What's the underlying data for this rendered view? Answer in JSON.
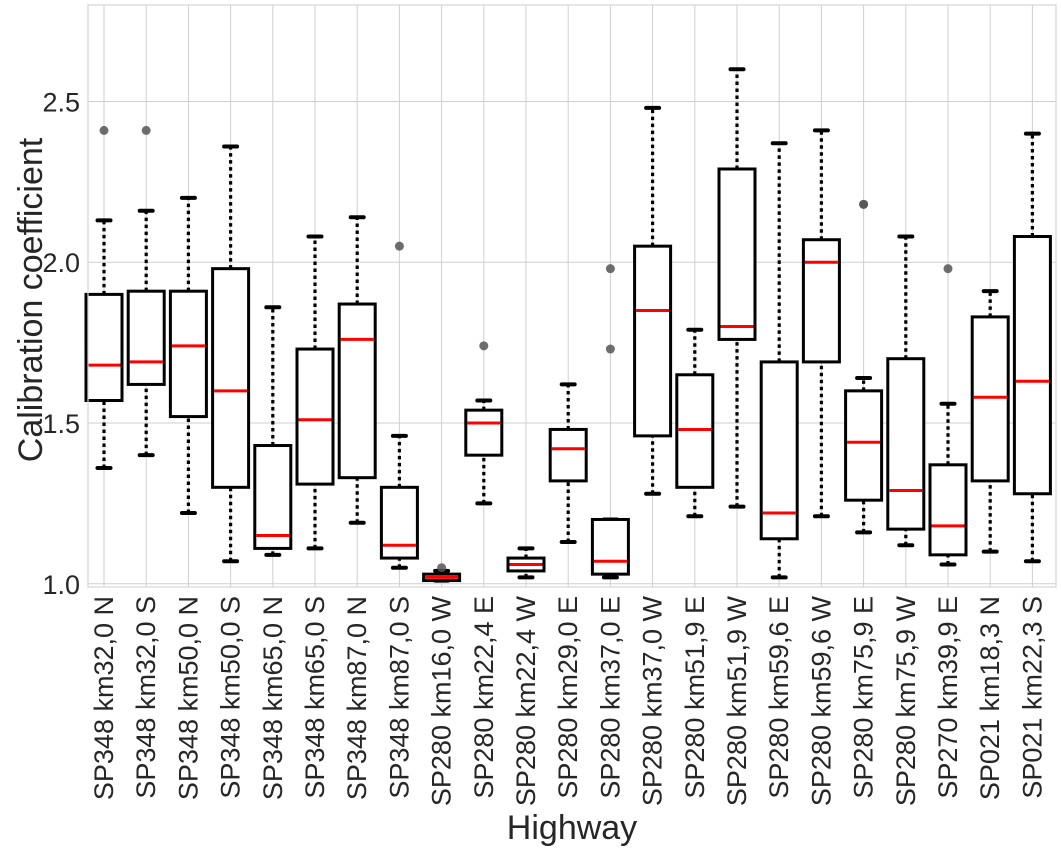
{
  "chart_data": {
    "type": "boxplot",
    "title": "",
    "xlabel": "Highway",
    "ylabel": "Calibration coefficient",
    "ylim": [
      0.99,
      2.8
    ],
    "yticks": [
      1.0,
      1.5,
      2.0,
      2.5
    ],
    "ytick_labels": [
      "1.0",
      "1.5",
      "2.0",
      "2.5"
    ],
    "grid": true,
    "colors": {
      "box": "#000000",
      "median": "#ff0000",
      "outlier": "#555555",
      "grid": "#cfcfcf",
      "frame": "#d6d6d6"
    },
    "categories": [
      "SP348 km32,0 N",
      "SP348 km32,0 S",
      "SP348 km50,0 N",
      "SP348 km50,0 S",
      "SP348 km65,0 N",
      "SP348 km65,0 S",
      "SP348 km87,0 N",
      "SP348 km87,0 S",
      "SP280 km16,0 W",
      "SP280 km22,4 E",
      "SP280 km22,4 W",
      "SP280 km29,0 E",
      "SP280 km37,0 E",
      "SP280 km37,0 W",
      "SP280 km51,9 E",
      "SP280 km51,9 W",
      "SP280 km59,6 E",
      "SP280 km59,6 W",
      "SP280 km75,9 E",
      "SP280 km75,9 W",
      "SP270 km39,9 E",
      "SP021 km18,3 N",
      "SP021 km22,3 S"
    ],
    "boxes": [
      {
        "whislo": 1.36,
        "q1": 1.57,
        "med": 1.68,
        "q3": 1.9,
        "whishi": 2.13,
        "fliers": [
          2.41
        ]
      },
      {
        "whislo": 1.4,
        "q1": 1.62,
        "med": 1.69,
        "q3": 1.91,
        "whishi": 2.16,
        "fliers": [
          2.41
        ]
      },
      {
        "whislo": 1.22,
        "q1": 1.52,
        "med": 1.74,
        "q3": 1.91,
        "whishi": 2.2,
        "fliers": []
      },
      {
        "whislo": 1.07,
        "q1": 1.3,
        "med": 1.6,
        "q3": 1.98,
        "whishi": 2.36,
        "fliers": []
      },
      {
        "whislo": 1.09,
        "q1": 1.11,
        "med": 1.15,
        "q3": 1.43,
        "whishi": 1.86,
        "fliers": []
      },
      {
        "whislo": 1.11,
        "q1": 1.31,
        "med": 1.51,
        "q3": 1.73,
        "whishi": 2.08,
        "fliers": []
      },
      {
        "whislo": 1.19,
        "q1": 1.33,
        "med": 1.76,
        "q3": 1.87,
        "whishi": 2.14,
        "fliers": []
      },
      {
        "whislo": 1.05,
        "q1": 1.08,
        "med": 1.12,
        "q3": 1.3,
        "whishi": 1.46,
        "fliers": [
          2.05
        ]
      },
      {
        "whislo": 1.01,
        "q1": 1.01,
        "med": 1.02,
        "q3": 1.03,
        "whishi": 1.04,
        "fliers": [
          1.05
        ]
      },
      {
        "whislo": 1.25,
        "q1": 1.4,
        "med": 1.5,
        "q3": 1.54,
        "whishi": 1.57,
        "fliers": [
          1.74
        ]
      },
      {
        "whislo": 1.02,
        "q1": 1.04,
        "med": 1.06,
        "q3": 1.08,
        "whishi": 1.11,
        "fliers": []
      },
      {
        "whislo": 1.13,
        "q1": 1.32,
        "med": 1.42,
        "q3": 1.48,
        "whishi": 1.62,
        "fliers": []
      },
      {
        "whislo": 1.02,
        "q1": 1.03,
        "med": 1.07,
        "q3": 1.2,
        "whishi": 1.2,
        "fliers": [
          1.73,
          1.98
        ]
      },
      {
        "whislo": 1.28,
        "q1": 1.46,
        "med": 1.85,
        "q3": 2.05,
        "whishi": 2.48,
        "fliers": []
      },
      {
        "whislo": 1.21,
        "q1": 1.3,
        "med": 1.48,
        "q3": 1.65,
        "whishi": 1.79,
        "fliers": []
      },
      {
        "whislo": 1.24,
        "q1": 1.76,
        "med": 1.8,
        "q3": 2.29,
        "whishi": 2.6,
        "fliers": []
      },
      {
        "whislo": 1.02,
        "q1": 1.14,
        "med": 1.22,
        "q3": 1.69,
        "whishi": 2.37,
        "fliers": []
      },
      {
        "whislo": 1.21,
        "q1": 1.69,
        "med": 2.0,
        "q3": 2.07,
        "whishi": 2.41,
        "fliers": []
      },
      {
        "whislo": 1.16,
        "q1": 1.26,
        "med": 1.44,
        "q3": 1.6,
        "whishi": 1.64,
        "fliers": [
          2.18,
          2.18
        ]
      },
      {
        "whislo": 1.12,
        "q1": 1.17,
        "med": 1.29,
        "q3": 1.7,
        "whishi": 2.08,
        "fliers": []
      },
      {
        "whislo": 1.06,
        "q1": 1.09,
        "med": 1.18,
        "q3": 1.37,
        "whishi": 1.56,
        "fliers": [
          1.98
        ]
      },
      {
        "whislo": 1.1,
        "q1": 1.32,
        "med": 1.58,
        "q3": 1.83,
        "whishi": 1.91,
        "fliers": []
      },
      {
        "whislo": 1.07,
        "q1": 1.28,
        "med": 1.63,
        "q3": 2.08,
        "whishi": 2.4,
        "fliers": []
      }
    ]
  }
}
